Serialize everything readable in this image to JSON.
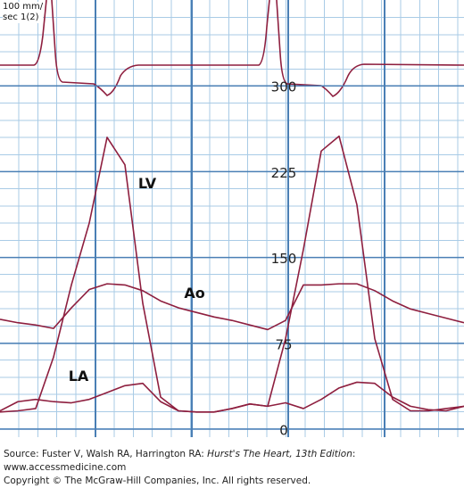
{
  "chart_data": {
    "type": "line",
    "scale_note": "100 mm/\nsec 1(2)",
    "x": [
      0,
      20,
      40,
      60,
      80,
      100,
      120,
      140,
      160,
      180,
      200,
      220,
      240,
      260,
      280,
      300,
      320,
      340,
      360,
      380,
      400,
      420,
      440,
      460,
      480,
      500,
      520
    ],
    "xlim": [
      0,
      520
    ],
    "ylim": [
      -7,
      375
    ],
    "yticks": [
      0,
      75,
      150,
      225,
      300
    ],
    "grid": true,
    "series": [
      {
        "name": "LV",
        "color": "#8e1f3f",
        "values": [
          15,
          16,
          18,
          63,
          126,
          180,
          255,
          231,
          110,
          28,
          16,
          15,
          15,
          18,
          22,
          20,
          79,
          157,
          243,
          256,
          196,
          79,
          26,
          16,
          16,
          18,
          20
        ]
      },
      {
        "name": "Ao",
        "color": "#8e1f3f",
        "values": [
          96,
          93,
          91,
          88,
          106,
          122,
          127,
          126,
          121,
          112,
          106,
          102,
          98,
          95,
          91,
          87,
          95,
          126,
          126,
          127,
          127,
          121,
          112,
          105,
          101,
          97,
          93
        ]
      },
      {
        "name": "LA",
        "color": "#8e1f3f",
        "values": [
          16,
          24,
          26,
          24,
          23,
          26,
          32,
          38,
          40,
          24,
          16,
          15,
          15,
          18,
          22,
          20,
          23,
          18,
          26,
          36,
          41,
          40,
          28,
          20,
          17,
          16,
          20
        ]
      }
    ]
  },
  "footer": {
    "source_prefix": "Source: Fuster V, Walsh RA, Harrington RA: ",
    "source_title": "Hurst's The Heart, 13th Edition",
    "source_suffix": ": www.accessmedicine.com",
    "copyright": "Copyright © The McGraw-Hill Companies, Inc. All rights reserved."
  }
}
